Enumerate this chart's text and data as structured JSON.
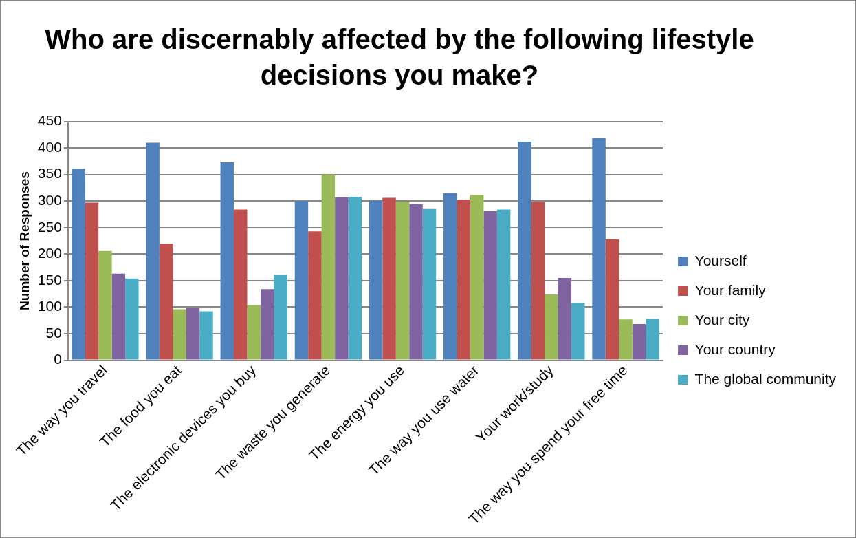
{
  "chart_data": {
    "type": "bar",
    "title": "Who are discernably affected by the following lifestyle decisions you make?",
    "ylabel": "Number of Responses",
    "categories": [
      "The way you travel",
      "The food you eat",
      "The electronic devices you buy",
      "The waste you generate",
      "The energy you use",
      "The way you use water",
      "Your work/study",
      "The way you spend your free time"
    ],
    "series": [
      {
        "name": "Yourself",
        "color": "#4f81bd",
        "values": [
          361,
          410,
          373,
          300,
          301,
          315,
          412,
          419
        ]
      },
      {
        "name": "Your family",
        "color": "#c0504d",
        "values": [
          297,
          220,
          284,
          243,
          306,
          303,
          299,
          228
        ]
      },
      {
        "name": "Your city",
        "color": "#9bbb59",
        "values": [
          206,
          96,
          104,
          350,
          299,
          312,
          124,
          77
        ]
      },
      {
        "name": "Your country",
        "color": "#8064a2",
        "values": [
          163,
          98,
          134,
          307,
          294,
          281,
          155,
          68
        ]
      },
      {
        "name": "The global community",
        "color": "#4bacc6",
        "values": [
          154,
          92,
          161,
          308,
          285,
          284,
          108,
          78
        ]
      }
    ],
    "ylim": [
      0,
      450
    ],
    "yticks": [
      0,
      50,
      100,
      150,
      200,
      250,
      300,
      350,
      400,
      450
    ],
    "grid": "y",
    "legend": "right"
  }
}
